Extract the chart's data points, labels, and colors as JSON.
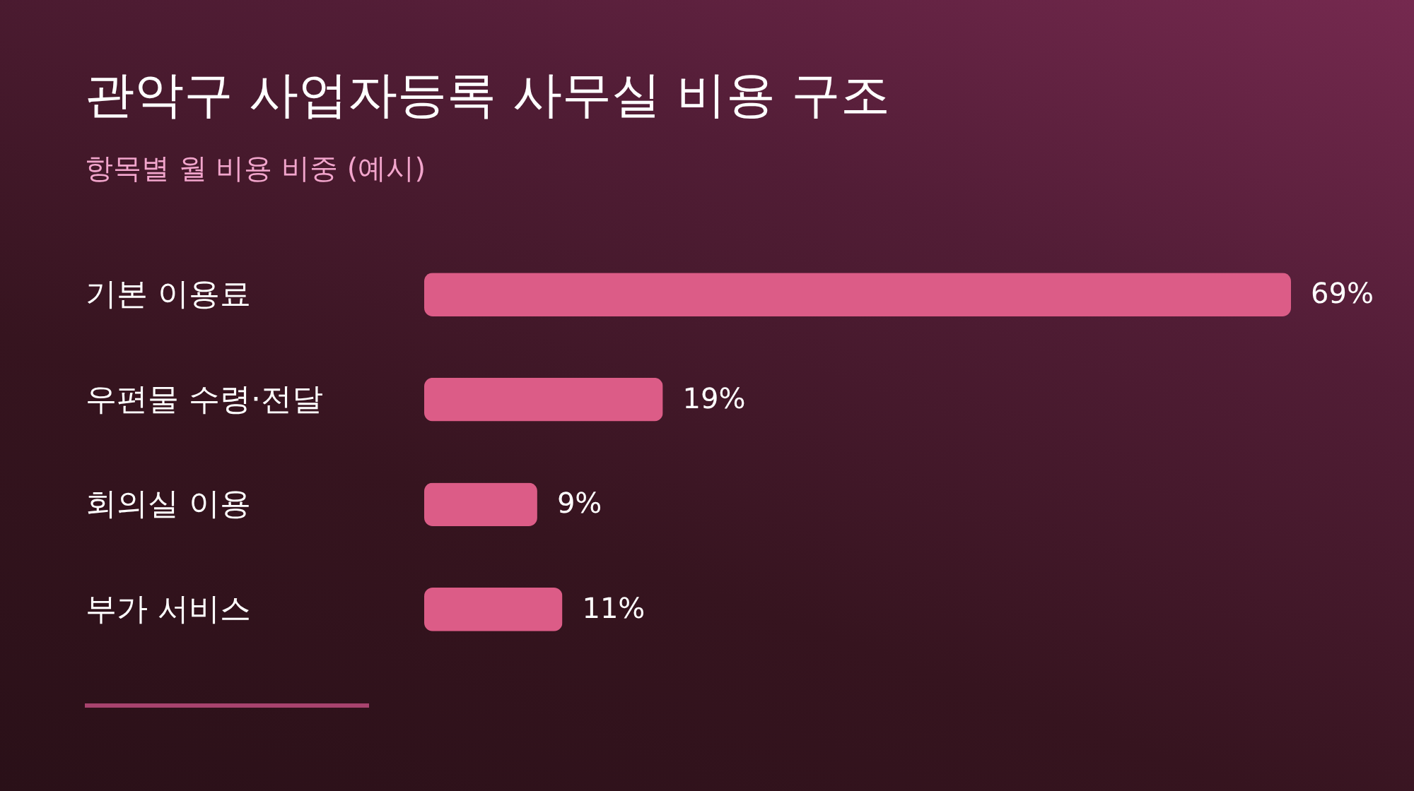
{
  "chart_data": {
    "type": "bar",
    "orientation": "horizontal",
    "title": "관악구 사업자등록 사무실 비용 구조",
    "subtitle": "항목별 월 비용 비중 (예시)",
    "categories": [
      "기본 이용료",
      "우편물 수령·전달",
      "회의실 이용",
      "부가 서비스"
    ],
    "values": [
      69,
      19,
      9,
      11
    ],
    "value_labels": [
      "69%",
      "19%",
      "9%",
      "11%"
    ],
    "color": "#dc5c87"
  }
}
